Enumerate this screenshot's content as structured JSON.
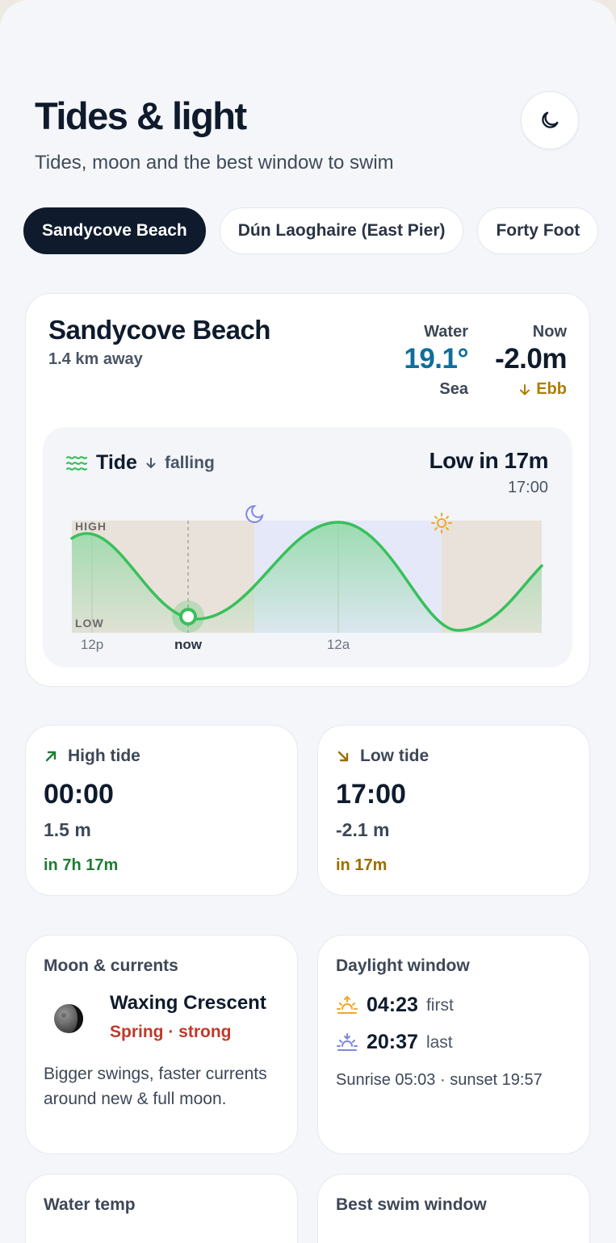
{
  "header": {
    "title": "Tides & light",
    "subtitle": "Tides, moon and the best window to swim",
    "theme_icon": "moon-icon"
  },
  "locations": [
    {
      "label": "Sandycove Beach",
      "active": true
    },
    {
      "label": "Dún Laoghaire (East Pier)",
      "active": false
    },
    {
      "label": "Forty Foot",
      "active": false
    }
  ],
  "main": {
    "name": "Sandycove Beach",
    "distance": "1.4 km away",
    "water": {
      "label": "Water",
      "value": "19.1°",
      "sub": "Sea"
    },
    "now": {
      "label": "Now",
      "value": "-2.0m",
      "sub": "Ebb"
    }
  },
  "tide": {
    "title": "Tide",
    "trend": "falling",
    "next_label": "Low in 17m",
    "next_time": "17:00"
  },
  "chart_data": {
    "type": "area",
    "high_label": "HIGH",
    "low_label": "LOW",
    "ticks": [
      "12p",
      "now",
      "12a"
    ],
    "colors": {
      "line": "#38c05a",
      "fill": "#8fd9a3",
      "day": "#e9e2da",
      "night": "#e4e8f8",
      "moon": "#7f86e0",
      "sun": "#f5a623"
    }
  },
  "high_tide": {
    "label": "High tide",
    "time": "00:00",
    "height": "1.5 m",
    "in": "in 7h 17m",
    "icon": "arrow-up-right-icon"
  },
  "low_tide": {
    "label": "Low tide",
    "time": "17:00",
    "height": "-2.1 m",
    "in": "in 17m",
    "icon": "arrow-down-right-icon"
  },
  "moon": {
    "label": "Moon & currents",
    "phase": "Waxing Crescent",
    "strength": "Spring · strong",
    "description": "Bigger swings, faster currents around new & full moon."
  },
  "daylight": {
    "label": "Daylight window",
    "first_time": "04:23",
    "first_label": "first",
    "last_time": "20:37",
    "last_label": "last",
    "sun_times": "Sunrise 05:03 · sunset 19:57"
  },
  "water_temp": {
    "label": "Water temp"
  },
  "best_swim": {
    "label": "Best swim window"
  },
  "colors": {
    "accent_blue": "#0f6e9a",
    "ebb": "#b07d00",
    "green": "#1d7d33",
    "low_amber": "#9a6d00",
    "red": "#c0392b"
  }
}
